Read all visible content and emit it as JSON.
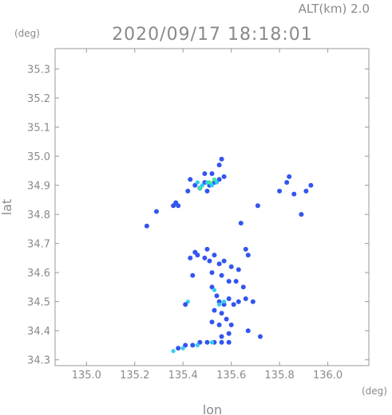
{
  "header": {
    "altitude_label": "ALT(km) 2.0",
    "timestamp": "2020/09/17 18:18:01"
  },
  "chart_data": {
    "type": "scatter",
    "title": "2020/09/17 18:18:01",
    "xlabel": "lon",
    "ylabel": "lat",
    "x_unit": "(deg)",
    "y_unit": "(deg)",
    "xlim": [
      134.87,
      136.17
    ],
    "ylim": [
      34.28,
      35.37
    ],
    "x_ticks": [
      "135.0",
      "135.2",
      "135.4",
      "135.6",
      "135.8",
      "136.0"
    ],
    "y_ticks": [
      "34.3",
      "34.4",
      "34.5",
      "34.6",
      "34.7",
      "34.8",
      "34.9",
      "35.0",
      "35.1",
      "35.2",
      "35.3"
    ],
    "grid": false,
    "colors": {
      "weak": "#3355ee",
      "moderate": "#33ccee",
      "strong": "#33ee99",
      "axis": "#999999"
    },
    "series": [
      {
        "values": [
          {
            "x": 135.45,
            "y": 34.9,
            "level": "weak"
          },
          {
            "x": 135.47,
            "y": 34.89,
            "level": "weak"
          },
          {
            "x": 135.49,
            "y": 34.91,
            "level": "weak"
          },
          {
            "x": 135.51,
            "y": 34.9,
            "level": "weak"
          },
          {
            "x": 135.53,
            "y": 34.91,
            "level": "weak"
          },
          {
            "x": 135.55,
            "y": 34.92,
            "level": "weak"
          },
          {
            "x": 135.5,
            "y": 34.88,
            "level": "weak"
          },
          {
            "x": 135.43,
            "y": 34.92,
            "level": "weak"
          },
          {
            "x": 135.42,
            "y": 34.88,
            "level": "weak"
          },
          {
            "x": 135.52,
            "y": 34.94,
            "level": "weak"
          },
          {
            "x": 135.55,
            "y": 34.97,
            "level": "weak"
          },
          {
            "x": 135.56,
            "y": 34.99,
            "level": "weak"
          },
          {
            "x": 135.57,
            "y": 34.93,
            "level": "weak"
          },
          {
            "x": 135.49,
            "y": 34.94,
            "level": "weak"
          },
          {
            "x": 135.46,
            "y": 34.91,
            "level": "moderate"
          },
          {
            "x": 135.48,
            "y": 34.9,
            "level": "moderate"
          },
          {
            "x": 135.5,
            "y": 34.91,
            "level": "moderate"
          },
          {
            "x": 135.52,
            "y": 34.9,
            "level": "moderate"
          },
          {
            "x": 135.54,
            "y": 34.91,
            "level": "moderate"
          },
          {
            "x": 135.47,
            "y": 34.89,
            "level": "strong"
          },
          {
            "x": 135.51,
            "y": 34.91,
            "level": "strong"
          },
          {
            "x": 135.53,
            "y": 34.92,
            "level": "strong"
          },
          {
            "x": 135.38,
            "y": 34.83,
            "level": "weak"
          },
          {
            "x": 135.37,
            "y": 34.84,
            "level": "weak"
          },
          {
            "x": 135.36,
            "y": 34.83,
            "level": "weak"
          },
          {
            "x": 135.29,
            "y": 34.81,
            "level": "weak"
          },
          {
            "x": 135.25,
            "y": 34.76,
            "level": "weak"
          },
          {
            "x": 135.84,
            "y": 34.93,
            "level": "weak"
          },
          {
            "x": 135.83,
            "y": 34.91,
            "level": "weak"
          },
          {
            "x": 135.8,
            "y": 34.88,
            "level": "weak"
          },
          {
            "x": 135.86,
            "y": 34.87,
            "level": "weak"
          },
          {
            "x": 135.91,
            "y": 34.88,
            "level": "weak"
          },
          {
            "x": 135.93,
            "y": 34.9,
            "level": "weak"
          },
          {
            "x": 135.71,
            "y": 34.83,
            "level": "weak"
          },
          {
            "x": 135.64,
            "y": 34.77,
            "level": "weak"
          },
          {
            "x": 135.89,
            "y": 34.8,
            "level": "weak"
          },
          {
            "x": 135.46,
            "y": 34.66,
            "level": "weak"
          },
          {
            "x": 135.49,
            "y": 34.65,
            "level": "weak"
          },
          {
            "x": 135.51,
            "y": 34.64,
            "level": "weak"
          },
          {
            "x": 135.53,
            "y": 34.66,
            "level": "weak"
          },
          {
            "x": 135.55,
            "y": 34.63,
            "level": "weak"
          },
          {
            "x": 135.57,
            "y": 34.64,
            "level": "weak"
          },
          {
            "x": 135.6,
            "y": 34.62,
            "level": "weak"
          },
          {
            "x": 135.63,
            "y": 34.61,
            "level": "weak"
          },
          {
            "x": 135.66,
            "y": 34.68,
            "level": "weak"
          },
          {
            "x": 135.67,
            "y": 34.66,
            "level": "weak"
          },
          {
            "x": 135.43,
            "y": 34.65,
            "level": "weak"
          },
          {
            "x": 135.44,
            "y": 34.59,
            "level": "weak"
          },
          {
            "x": 135.52,
            "y": 34.6,
            "level": "weak"
          },
          {
            "x": 135.56,
            "y": 34.59,
            "level": "weak"
          },
          {
            "x": 135.59,
            "y": 34.57,
            "level": "weak"
          },
          {
            "x": 135.62,
            "y": 34.57,
            "level": "weak"
          },
          {
            "x": 135.65,
            "y": 34.55,
            "level": "weak"
          },
          {
            "x": 135.52,
            "y": 34.55,
            "level": "weak"
          },
          {
            "x": 135.54,
            "y": 34.52,
            "level": "weak"
          },
          {
            "x": 135.55,
            "y": 34.5,
            "level": "weak"
          },
          {
            "x": 135.57,
            "y": 34.49,
            "level": "weak"
          },
          {
            "x": 135.59,
            "y": 34.51,
            "level": "weak"
          },
          {
            "x": 135.61,
            "y": 34.49,
            "level": "weak"
          },
          {
            "x": 135.63,
            "y": 34.5,
            "level": "weak"
          },
          {
            "x": 135.66,
            "y": 34.51,
            "level": "weak"
          },
          {
            "x": 135.69,
            "y": 34.5,
            "level": "weak"
          },
          {
            "x": 135.53,
            "y": 34.47,
            "level": "weak"
          },
          {
            "x": 135.56,
            "y": 34.46,
            "level": "weak"
          },
          {
            "x": 135.58,
            "y": 34.44,
            "level": "weak"
          },
          {
            "x": 135.55,
            "y": 34.42,
            "level": "weak"
          },
          {
            "x": 135.52,
            "y": 34.43,
            "level": "weak"
          },
          {
            "x": 135.6,
            "y": 34.42,
            "level": "weak"
          },
          {
            "x": 135.67,
            "y": 34.4,
            "level": "weak"
          },
          {
            "x": 135.56,
            "y": 34.38,
            "level": "weak"
          },
          {
            "x": 135.59,
            "y": 34.39,
            "level": "weak"
          },
          {
            "x": 135.72,
            "y": 34.38,
            "level": "weak"
          },
          {
            "x": 135.55,
            "y": 34.49,
            "level": "moderate"
          },
          {
            "x": 135.57,
            "y": 34.5,
            "level": "moderate"
          },
          {
            "x": 135.53,
            "y": 34.54,
            "level": "moderate"
          },
          {
            "x": 135.42,
            "y": 34.5,
            "level": "moderate"
          },
          {
            "x": 135.41,
            "y": 34.49,
            "level": "weak"
          },
          {
            "x": 135.38,
            "y": 34.34,
            "level": "weak"
          },
          {
            "x": 135.41,
            "y": 34.35,
            "level": "weak"
          },
          {
            "x": 135.44,
            "y": 34.35,
            "level": "weak"
          },
          {
            "x": 135.47,
            "y": 34.36,
            "level": "weak"
          },
          {
            "x": 135.5,
            "y": 34.36,
            "level": "weak"
          },
          {
            "x": 135.53,
            "y": 34.36,
            "level": "weak"
          },
          {
            "x": 135.56,
            "y": 34.36,
            "level": "weak"
          },
          {
            "x": 135.59,
            "y": 34.36,
            "level": "weak"
          },
          {
            "x": 135.36,
            "y": 34.33,
            "level": "moderate"
          },
          {
            "x": 135.4,
            "y": 34.34,
            "level": "moderate"
          },
          {
            "x": 135.46,
            "y": 34.35,
            "level": "moderate"
          },
          {
            "x": 135.52,
            "y": 34.36,
            "level": "moderate"
          },
          {
            "x": 135.45,
            "y": 34.67,
            "level": "weak"
          },
          {
            "x": 135.5,
            "y": 34.68,
            "level": "weak"
          }
        ]
      }
    ]
  }
}
